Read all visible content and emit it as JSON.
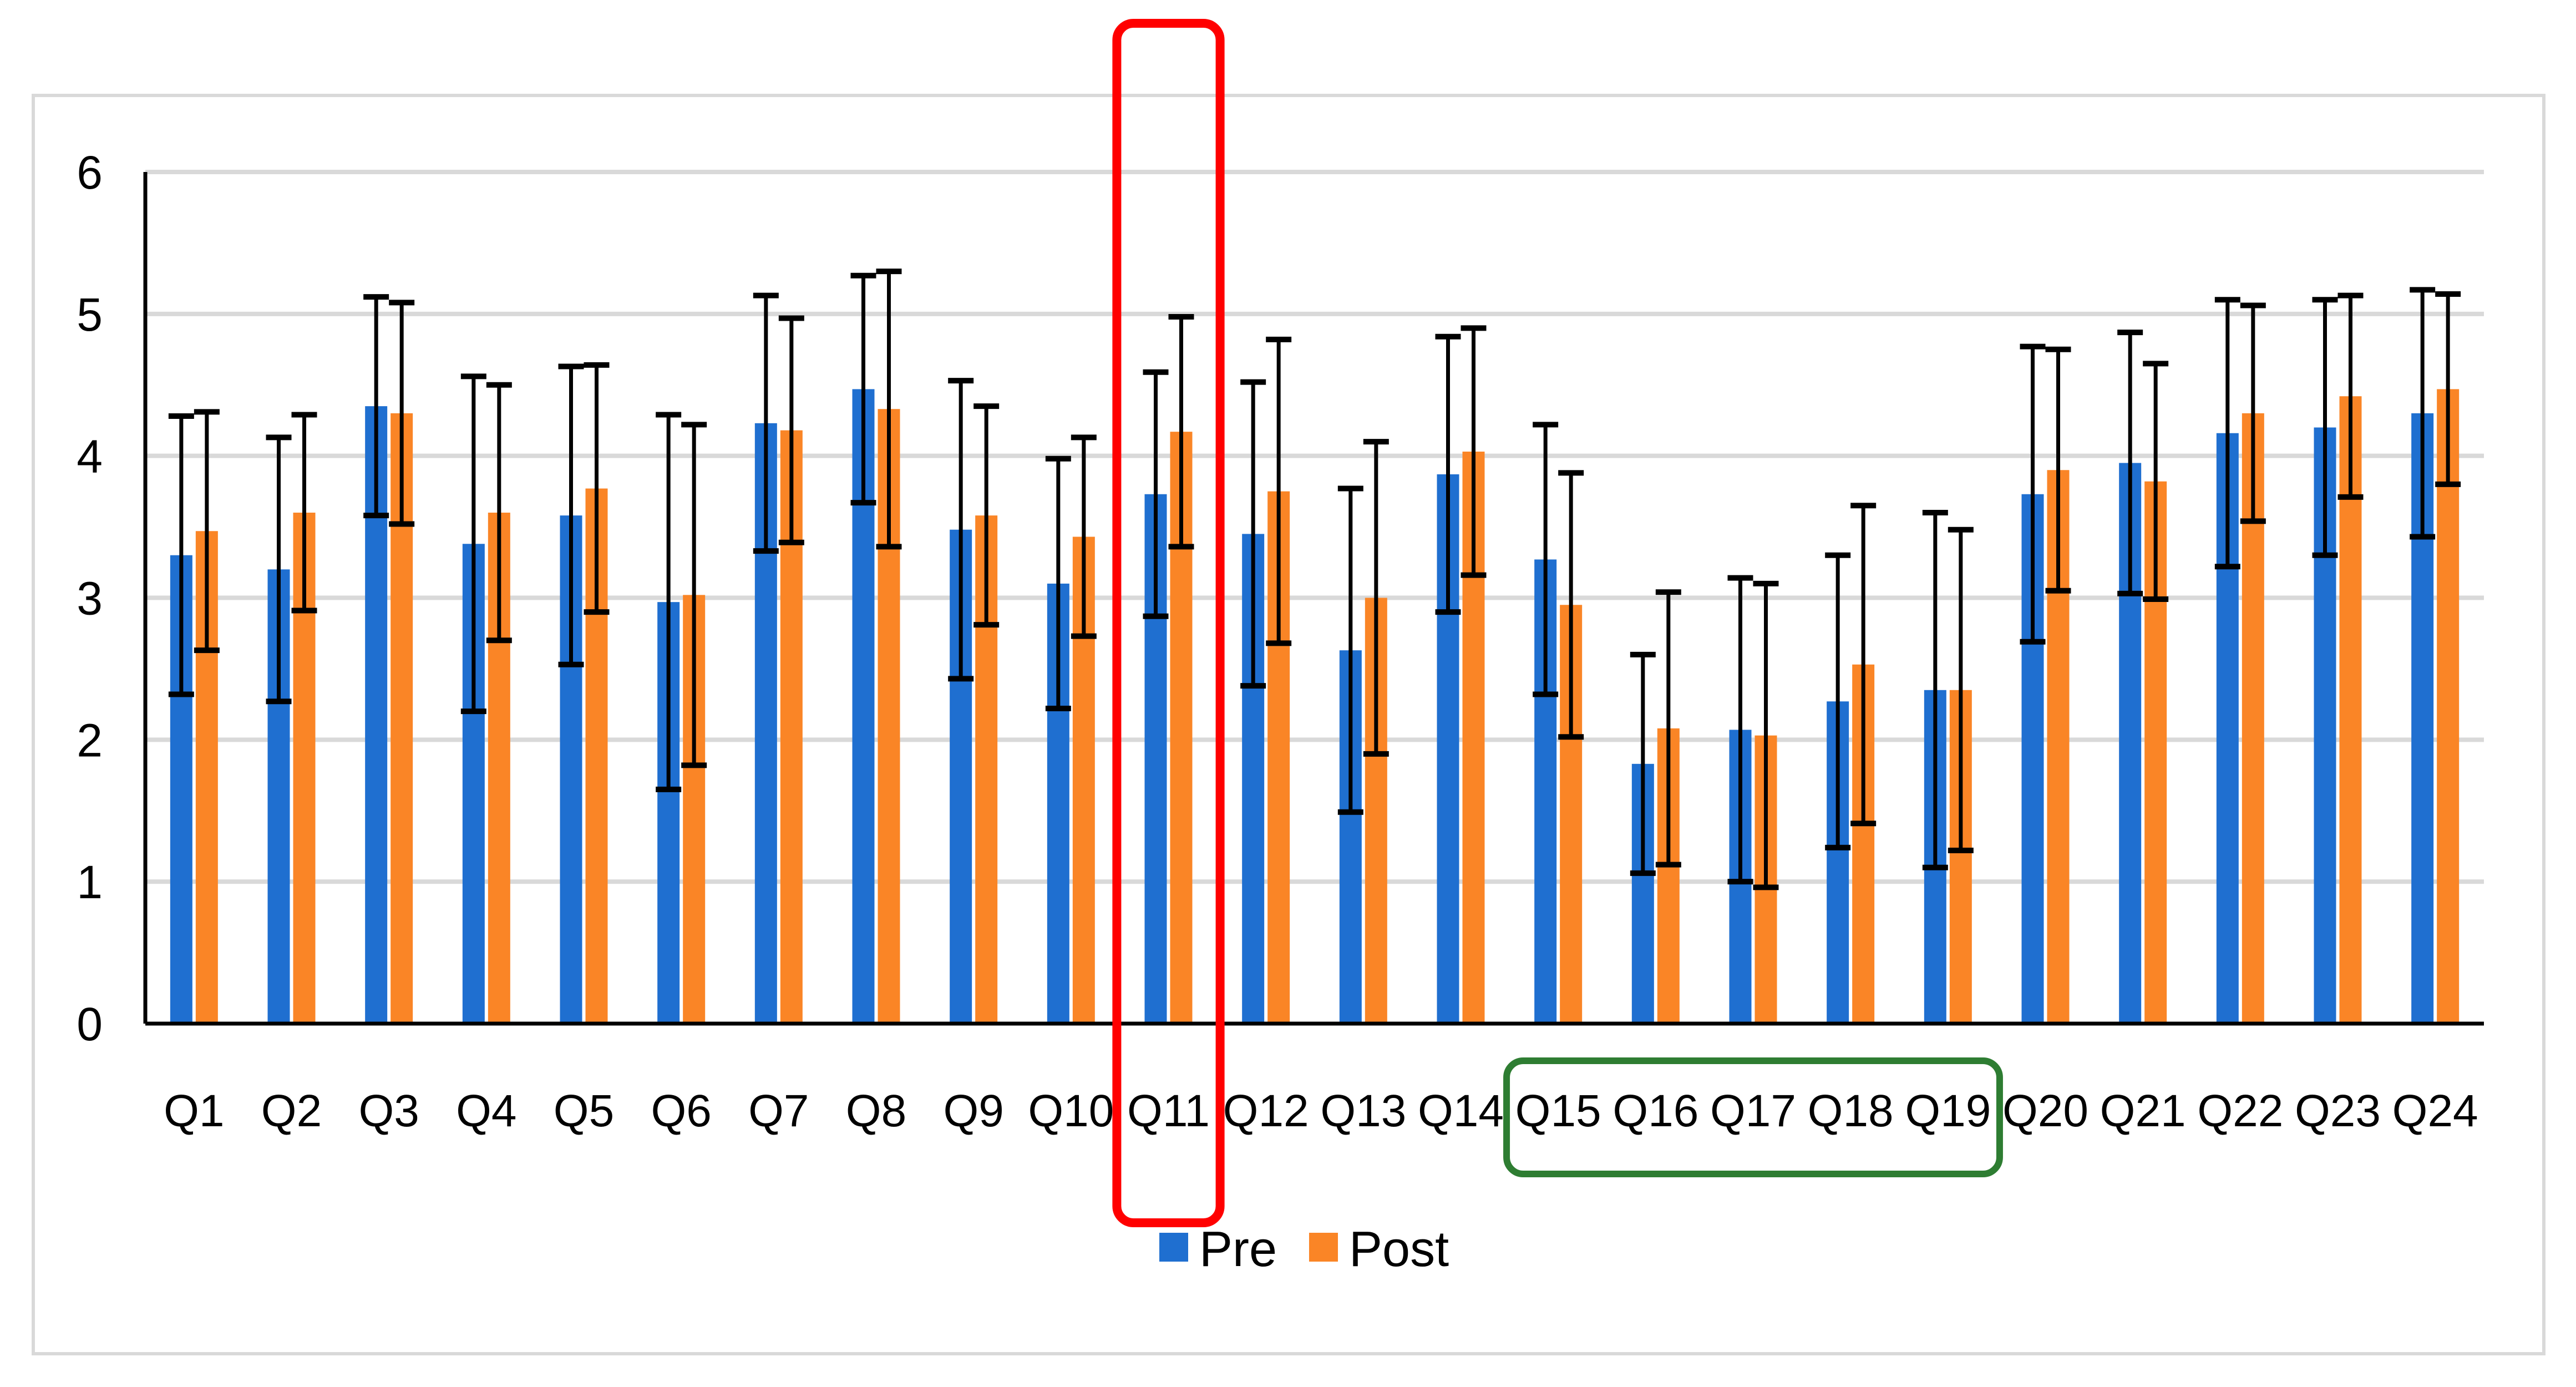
{
  "colors": {
    "pre": "#1f6fd0",
    "post": "#fa8526",
    "gridline": "#d9d9d9",
    "axis": "#000000",
    "error_bar": "#000000",
    "frame": "#d9d9d9",
    "highlight_red": "#ff0000",
    "highlight_green": "#2e7d32"
  },
  "chart_data": {
    "type": "bar",
    "title": "",
    "xlabel": "",
    "ylabel": "",
    "ylim": [
      0,
      6
    ],
    "yticks": [
      "0",
      "1",
      "2",
      "3",
      "4",
      "5",
      "6"
    ],
    "grid": true,
    "legend_position": "bottom",
    "categories": [
      "Q1",
      "Q2",
      "Q3",
      "Q4",
      "Q5",
      "Q6",
      "Q7",
      "Q8",
      "Q9",
      "Q10",
      "Q11",
      "Q12",
      "Q13",
      "Q14",
      "Q15",
      "Q16",
      "Q17",
      "Q18",
      "Q19",
      "Q20",
      "Q21",
      "Q22",
      "Q23",
      "Q24"
    ],
    "series": [
      {
        "name": "Pre",
        "values": [
          3.3,
          3.2,
          4.35,
          3.38,
          3.58,
          2.97,
          4.23,
          4.47,
          3.48,
          3.1,
          3.73,
          3.45,
          2.63,
          3.87,
          3.27,
          1.83,
          2.07,
          2.27,
          2.35,
          3.73,
          3.95,
          4.16,
          4.2,
          4.3
        ],
        "error": [
          0.98,
          0.93,
          0.77,
          1.18,
          1.05,
          1.32,
          0.9,
          0.8,
          1.05,
          0.88,
          0.86,
          1.07,
          1.14,
          0.97,
          0.95,
          0.77,
          1.07,
          1.03,
          1.25,
          1.04,
          0.92,
          0.94,
          0.9,
          0.87
        ]
      },
      {
        "name": "Post",
        "values": [
          3.47,
          3.6,
          4.3,
          3.6,
          3.77,
          3.02,
          4.18,
          4.33,
          3.58,
          3.43,
          4.17,
          3.75,
          3.0,
          4.03,
          2.95,
          2.08,
          2.03,
          2.53,
          2.35,
          3.9,
          3.82,
          4.3,
          4.42,
          4.47
        ],
        "error": [
          0.84,
          0.69,
          0.78,
          0.9,
          0.87,
          1.2,
          0.79,
          0.97,
          0.77,
          0.7,
          0.81,
          1.07,
          1.1,
          0.87,
          0.93,
          0.96,
          1.07,
          1.12,
          1.13,
          0.85,
          0.83,
          0.76,
          0.71,
          0.67
        ]
      }
    ],
    "legend": [
      "Pre",
      "Post"
    ],
    "annotations": [
      {
        "type": "box",
        "color": "red",
        "around": [
          "Q11"
        ]
      },
      {
        "type": "box",
        "color": "green",
        "around": [
          "Q15",
          "Q16",
          "Q17",
          "Q18",
          "Q19"
        ]
      }
    ]
  }
}
